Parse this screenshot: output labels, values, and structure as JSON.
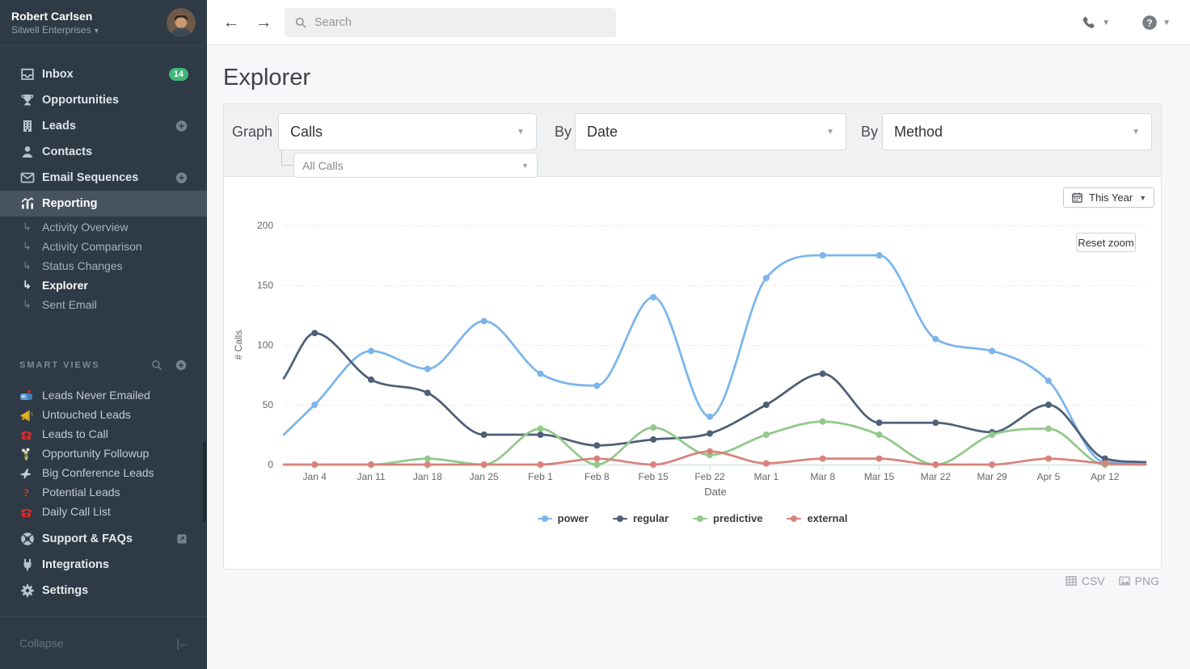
{
  "sidebar": {
    "user": {
      "name": "Robert Carlsen",
      "company": "Sitwell Enterprises"
    },
    "nav": [
      {
        "label": "Inbox",
        "icon": "inbox-icon",
        "badge": "14"
      },
      {
        "label": "Opportunities",
        "icon": "trophy-icon"
      },
      {
        "label": "Leads",
        "icon": "building-icon",
        "plus": true
      },
      {
        "label": "Contacts",
        "icon": "person-icon"
      },
      {
        "label": "Email Sequences",
        "icon": "envelope-icon",
        "plus": true
      },
      {
        "label": "Reporting",
        "icon": "bar-chart-icon",
        "active": true
      }
    ],
    "reporting_sub": [
      {
        "label": "Activity Overview"
      },
      {
        "label": "Activity Comparison"
      },
      {
        "label": "Status Changes"
      },
      {
        "label": "Explorer",
        "active": true
      },
      {
        "label": "Sent Email"
      }
    ],
    "smart_views_label": "SMART VIEWS",
    "smart_views": [
      {
        "label": "Leads Never Emailed",
        "icon": "mailbox-icon"
      },
      {
        "label": "Untouched Leads",
        "icon": "megaphone-icon"
      },
      {
        "label": "Leads to Call",
        "icon": "red-phone-icon"
      },
      {
        "label": "Opportunity Followup",
        "icon": "bouquet-icon"
      },
      {
        "label": "Big Conference Leads",
        "icon": "airplane-icon"
      },
      {
        "label": "Potential Leads",
        "icon": "question-icon"
      },
      {
        "label": "Daily Call List",
        "icon": "red-phone-icon"
      }
    ],
    "footer": [
      {
        "label": "Support & FAQs",
        "icon": "life-ring-icon",
        "external": true
      },
      {
        "label": "Integrations",
        "icon": "plug-icon"
      },
      {
        "label": "Settings",
        "icon": "gear-icon"
      }
    ],
    "collapse_label": "Collapse"
  },
  "topbar": {
    "search_placeholder": "Search"
  },
  "page": {
    "title": "Explorer"
  },
  "controls": {
    "graph_label": "Graph",
    "graph_value": "Calls",
    "sub_value": "All Calls",
    "by1_label": "By",
    "by1_value": "Date",
    "by2_label": "By",
    "by2_value": "Method"
  },
  "chart_controls": {
    "range_button": "This Year",
    "reset_button": "Reset zoom"
  },
  "export": {
    "csv": "CSV",
    "png": "PNG"
  },
  "chart_data": {
    "type": "line",
    "xlabel": "Date",
    "ylabel": "# Calls",
    "x": [
      "Jan 4",
      "Jan 11",
      "Jan 18",
      "Jan 25",
      "Feb 1",
      "Feb 8",
      "Feb 15",
      "Feb 22",
      "Mar 1",
      "Mar 8",
      "Mar 15",
      "Mar 22",
      "Mar 29",
      "Apr 5",
      "Apr 12"
    ],
    "yticks": [
      0,
      50,
      100,
      150,
      200
    ],
    "ylim": [
      0,
      200
    ],
    "grid": "dotted-horizontal",
    "legend_position": "bottom",
    "series": [
      {
        "name": "power",
        "color": "#7cb5ec",
        "edge_start": 25,
        "edge_end": 2,
        "values": [
          50,
          95,
          80,
          120,
          76,
          66,
          140,
          40,
          156,
          175,
          175,
          105,
          95,
          70,
          2
        ]
      },
      {
        "name": "regular",
        "color": "#4d6078",
        "edge_start": 72,
        "edge_end": 2,
        "values": [
          110,
          71,
          60,
          25,
          25,
          16,
          21,
          26,
          50,
          76,
          35,
          35,
          27,
          50,
          5
        ]
      },
      {
        "name": "predictive",
        "color": "#92c98a",
        "edge_start": 0,
        "edge_end": 0,
        "values": [
          0,
          0,
          5,
          0,
          30,
          0,
          31,
          8,
          25,
          36,
          25,
          0,
          25,
          30,
          0
        ]
      },
      {
        "name": "external",
        "color": "#d9827c",
        "edge_start": 0,
        "edge_end": 0,
        "values": [
          0,
          0,
          0,
          0,
          0,
          5,
          0,
          11,
          1,
          5,
          5,
          0,
          0,
          5,
          1
        ]
      }
    ]
  }
}
